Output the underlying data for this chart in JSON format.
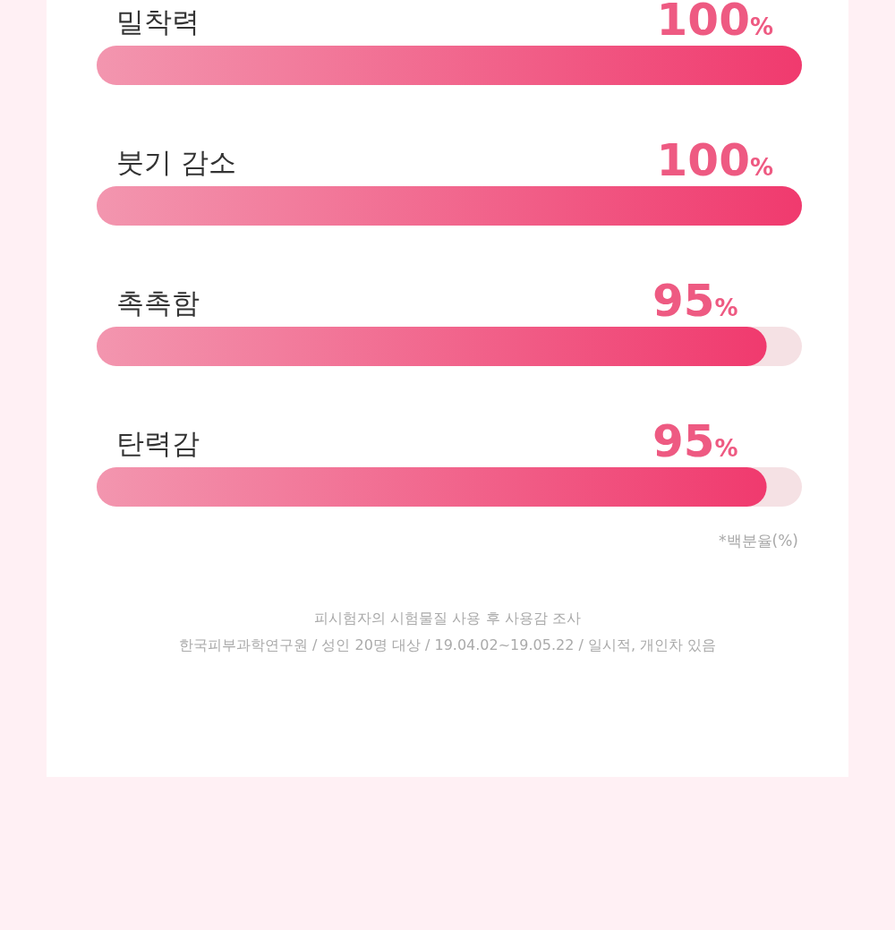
{
  "chart_data": {
    "type": "bar",
    "orientation": "horizontal",
    "categories": [
      "밀착력",
      "붓기 감소",
      "촉촉함",
      "탄력감"
    ],
    "values": [
      100,
      100,
      95,
      95
    ],
    "value_labels": [
      "100%",
      "100%",
      "95%",
      "95%"
    ],
    "color": "#f03a6e",
    "xlim": [
      0,
      100
    ],
    "annotations": [
      "*백분율(%)",
      "피시험자의 시험물질 사용 후 사용감 조사",
      "한국피부과학연구원 / 성인 20명 대상 / 19.04.02~19.05.22 / 일시적, 개인차 있음"
    ]
  }
}
